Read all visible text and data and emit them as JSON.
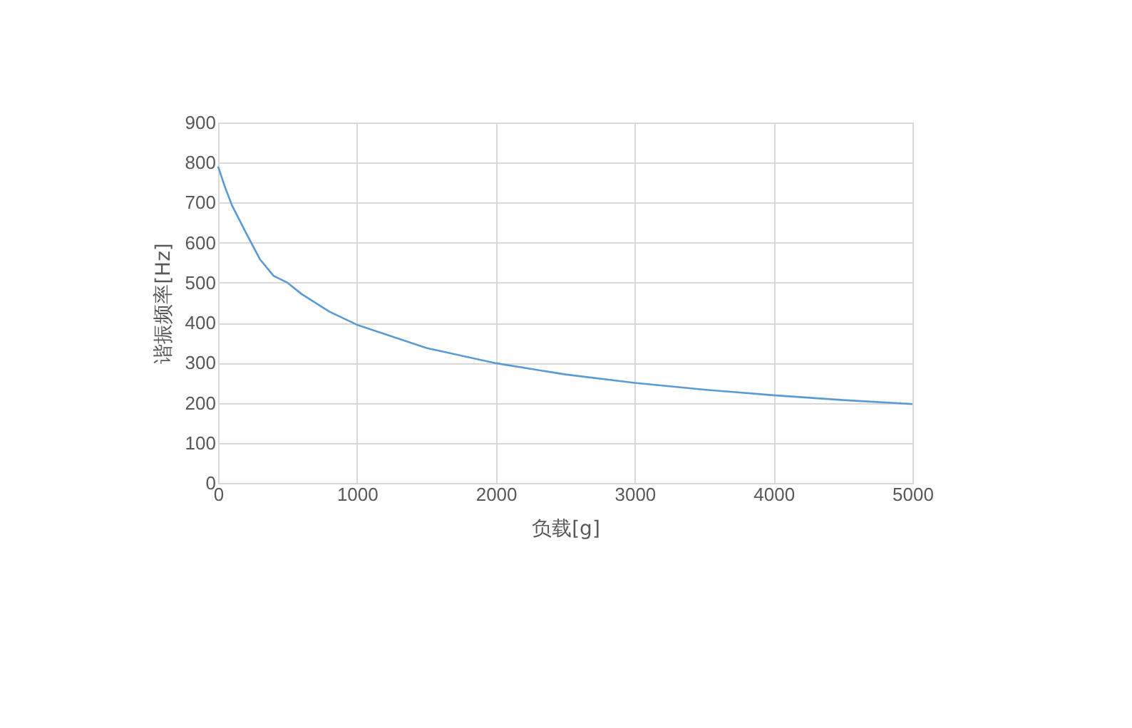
{
  "chart_data": {
    "type": "line",
    "xlabel": "负载[g]",
    "ylabel": "谐振频率[Hz]",
    "x": [
      0,
      50,
      100,
      200,
      300,
      400,
      500,
      600,
      800,
      1000,
      1500,
      2000,
      2500,
      3000,
      3500,
      4000,
      4500,
      5000
    ],
    "series": [
      {
        "color": "#5b9bd5",
        "values": [
          790,
          738,
          693,
          625,
          559,
          517,
          500,
          472,
          428,
          395,
          337,
          299,
          271,
          250,
          233,
          219,
          207,
          197
        ]
      }
    ],
    "xlim": [
      0,
      5000
    ],
    "xticks": [
      0,
      1000,
      2000,
      3000,
      4000,
      5000
    ],
    "ylim": [
      0,
      900
    ],
    "yticks": [
      0,
      100,
      200,
      300,
      400,
      500,
      600,
      700,
      800,
      900
    ],
    "grid": true,
    "marker": "none",
    "line_style": "solid"
  }
}
